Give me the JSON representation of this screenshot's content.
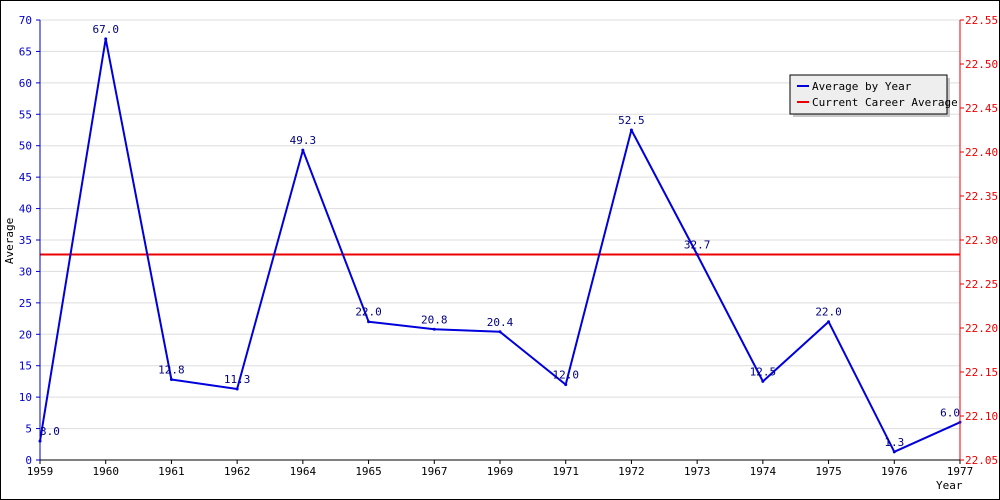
{
  "chart_data": {
    "type": "line",
    "xlabel": "Year",
    "ylabel": "Average",
    "categories": [
      "1959",
      "1960",
      "1961",
      "1962",
      "1964",
      "1965",
      "1967",
      "1969",
      "1971",
      "1972",
      "1973",
      "1974",
      "1975",
      "1976",
      "1977"
    ],
    "series": [
      {
        "name": "Average by Year",
        "color": "#0000dd",
        "values": [
          3.0,
          67.0,
          12.8,
          11.3,
          49.3,
          22.0,
          20.8,
          20.4,
          12.0,
          52.5,
          32.7,
          12.5,
          22.0,
          1.3,
          6.0
        ],
        "labels": [
          "3.0",
          "67.0",
          "12.8",
          "11.3",
          "49.3",
          "22.0",
          "20.8",
          "20.4",
          "12.0",
          "52.5",
          "32.7",
          "12.5",
          "22.0",
          "1.3",
          "6.0"
        ]
      },
      {
        "name": "Current Career Average",
        "color": "#ee0000",
        "value": 32.7
      }
    ],
    "ylim": [
      0,
      70
    ],
    "yticks": [
      "0",
      "5",
      "10",
      "15",
      "20",
      "25",
      "30",
      "35",
      "40",
      "45",
      "50",
      "55",
      "60",
      "65",
      "70"
    ],
    "y2lim": [
      22.05,
      22.55
    ],
    "y2ticks": [
      "22.05",
      "22.10",
      "22.15",
      "22.20",
      "22.25",
      "22.30",
      "22.35",
      "22.40",
      "22.45",
      "22.50",
      "22.55"
    ],
    "grid": true,
    "legend_position": "top-right"
  }
}
